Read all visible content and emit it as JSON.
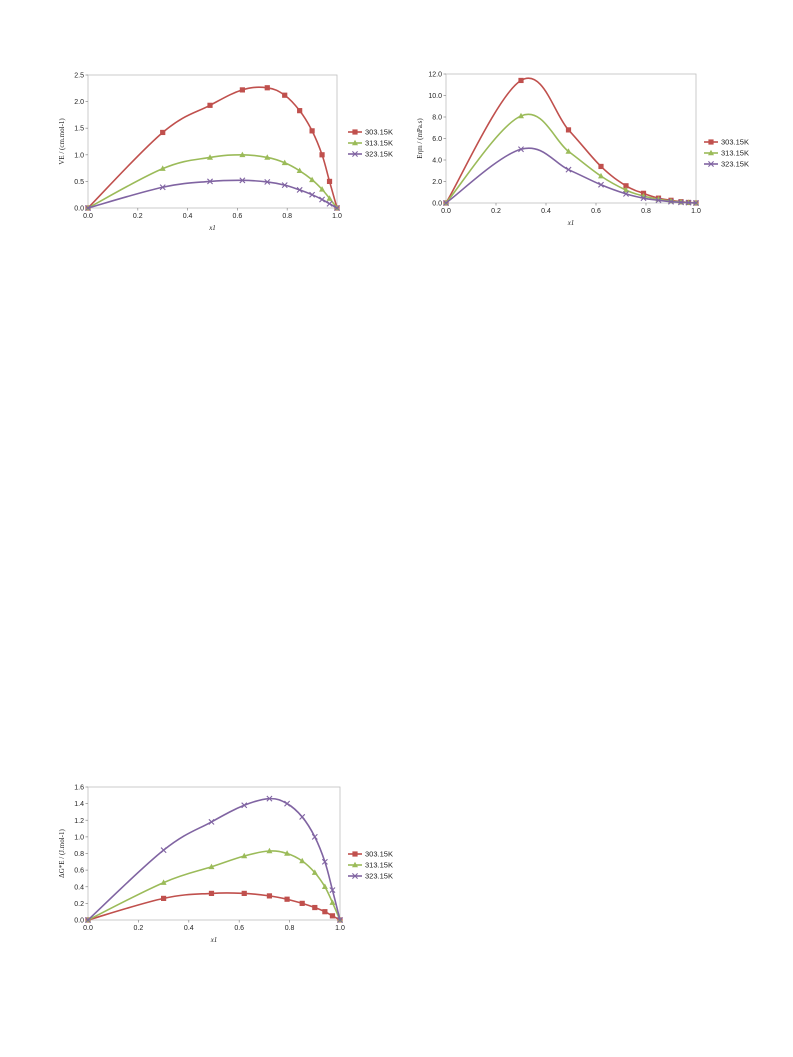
{
  "chart_data": [
    {
      "type": "line",
      "ylabel": "VE / (cm.mol-1)",
      "xlabel": "x1",
      "xlim": [
        0,
        1.0
      ],
      "ylim": [
        0,
        2.5
      ],
      "xticks": [
        "0.0",
        "0.2",
        "0.4",
        "0.6",
        "0.8",
        "1.0"
      ],
      "yticks": [
        "0.0",
        "0.5",
        "1.0",
        "1.5",
        "2.0",
        "2.5"
      ],
      "grid": false,
      "legend_position": "right",
      "x": [
        0.0,
        0.3,
        0.49,
        0.62,
        0.72,
        0.79,
        0.85,
        0.9,
        0.94,
        0.97,
        1.0
      ],
      "series": [
        {
          "name": "303.15K",
          "color": "#c0504d",
          "marker": "square",
          "values": [
            0.0,
            1.42,
            1.93,
            2.22,
            2.26,
            2.12,
            1.83,
            1.45,
            1.0,
            0.5,
            0.0
          ]
        },
        {
          "name": "313.15K",
          "color": "#9bbb59",
          "marker": "triangle",
          "values": [
            0.0,
            0.74,
            0.95,
            1.0,
            0.95,
            0.85,
            0.7,
            0.53,
            0.35,
            0.18,
            0.0
          ]
        },
        {
          "name": "323.15K",
          "color": "#8064a2",
          "marker": "x",
          "values": [
            0.0,
            0.39,
            0.5,
            0.52,
            0.49,
            0.43,
            0.34,
            0.25,
            0.16,
            0.08,
            0.0
          ]
        }
      ]
    },
    {
      "type": "line",
      "ylabel": "Eηm / (mPa.s)",
      "xlabel": "x1",
      "xlim": [
        0,
        1.0
      ],
      "ylim": [
        0,
        12.0
      ],
      "xticks": [
        "0.0",
        "0.2",
        "0.4",
        "0.6",
        "0.8",
        "1.0"
      ],
      "yticks": [
        "0.0",
        "2.0",
        "4.0",
        "6.0",
        "8.0",
        "10.0",
        "12.0"
      ],
      "grid": false,
      "legend_position": "right",
      "x": [
        0.0,
        0.3,
        0.49,
        0.62,
        0.72,
        0.79,
        0.85,
        0.9,
        0.94,
        0.97,
        1.0
      ],
      "series": [
        {
          "name": "303.15K",
          "color": "#c0504d",
          "marker": "square",
          "values": [
            0.0,
            11.4,
            6.8,
            3.4,
            1.6,
            0.9,
            0.45,
            0.25,
            0.12,
            0.05,
            0.0
          ]
        },
        {
          "name": "313.15K",
          "color": "#9bbb59",
          "marker": "triangle",
          "values": [
            0.0,
            8.1,
            4.8,
            2.5,
            1.2,
            0.65,
            0.35,
            0.18,
            0.09,
            0.04,
            0.0
          ]
        },
        {
          "name": "323.15K",
          "color": "#8064a2",
          "marker": "x",
          "values": [
            0.0,
            5.0,
            3.1,
            1.7,
            0.85,
            0.45,
            0.25,
            0.12,
            0.06,
            0.03,
            0.0
          ]
        }
      ]
    },
    {
      "type": "line",
      "ylabel": "ΔG*E / (J.mol-1)",
      "xlabel": "x1",
      "xlim": [
        0,
        1.0
      ],
      "ylim": [
        0,
        1.6
      ],
      "xticks": [
        "0.0",
        "0.2",
        "0.4",
        "0.6",
        "0.8",
        "1.0"
      ],
      "yticks": [
        "0.0",
        "0.2",
        "0.4",
        "0.6",
        "0.8",
        "1.0",
        "1.2",
        "1.4",
        "1.6"
      ],
      "grid": false,
      "legend_position": "right",
      "x": [
        0.0,
        0.3,
        0.49,
        0.62,
        0.72,
        0.79,
        0.85,
        0.9,
        0.94,
        0.97,
        1.0
      ],
      "series": [
        {
          "name": "303.15K",
          "color": "#c0504d",
          "marker": "square",
          "values": [
            0.0,
            0.26,
            0.32,
            0.32,
            0.29,
            0.25,
            0.2,
            0.15,
            0.1,
            0.05,
            0.0
          ]
        },
        {
          "name": "313.15K",
          "color": "#9bbb59",
          "marker": "triangle",
          "values": [
            0.0,
            0.45,
            0.64,
            0.77,
            0.83,
            0.8,
            0.71,
            0.57,
            0.4,
            0.21,
            0.0
          ]
        },
        {
          "name": "323.15K",
          "color": "#8064a2",
          "marker": "x",
          "values": [
            0.0,
            0.84,
            1.18,
            1.38,
            1.46,
            1.4,
            1.24,
            1.0,
            0.7,
            0.36,
            0.0
          ]
        }
      ]
    }
  ]
}
